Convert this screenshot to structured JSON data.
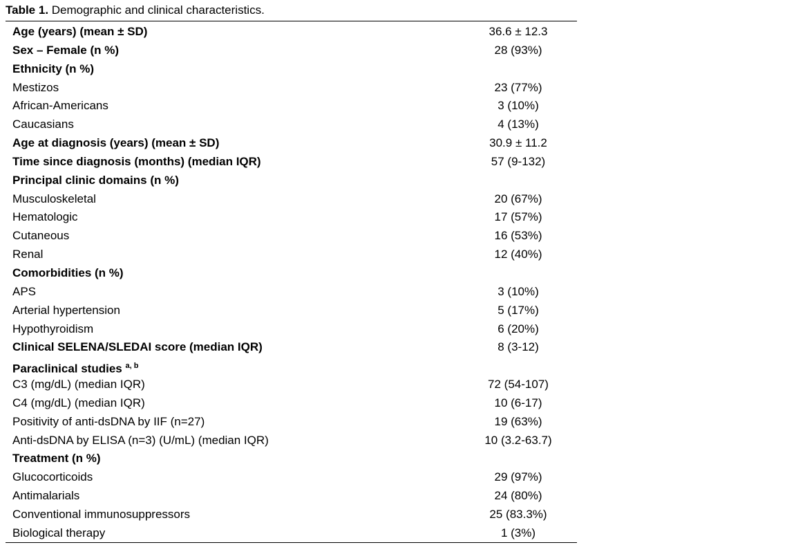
{
  "title": {
    "label": "Table 1.",
    "text": "Demographic and clinical characteristics."
  },
  "rows": [
    {
      "label": "Age (years) (mean ± SD)",
      "value": "36.6 ± 12.3",
      "bold": true
    },
    {
      "label": "Sex – Female (n %)",
      "value": "28 (93%)",
      "bold": true
    },
    {
      "label": "Ethnicity (n %)",
      "value": "",
      "bold": true
    },
    {
      "label": "Mestizos",
      "value": "23 (77%)"
    },
    {
      "label": "African-Americans",
      "value": "3 (10%)"
    },
    {
      "label": "Caucasians",
      "value": "4 (13%)"
    },
    {
      "label": "Age at diagnosis (years) (mean ± SD)",
      "value": "30.9 ± 11.2",
      "bold": true
    },
    {
      "label": "Time since diagnosis (months) (median IQR)",
      "value": "57 (9-132)",
      "bold": true
    },
    {
      "label": "Principal clinic domains (n %)",
      "value": "",
      "bold": true
    },
    {
      "label": "Musculoskeletal",
      "value": "20 (67%)"
    },
    {
      "label": "Hematologic",
      "value": "17 (57%)"
    },
    {
      "label": "Cutaneous",
      "value": "16 (53%)"
    },
    {
      "label": "Renal",
      "value": "12 (40%)"
    },
    {
      "label": "Comorbidities (n %)",
      "value": "",
      "bold": true
    },
    {
      "label": "APS",
      "value": "3 (10%)"
    },
    {
      "label": "Arterial hypertension",
      "value": "5 (17%)"
    },
    {
      "label": "Hypothyroidism",
      "value": "6 (20%)"
    },
    {
      "label": "Clinical SELENA/SLEDAI score (median IQR)",
      "value": "8 (3-12)",
      "bold": true
    },
    {
      "label": "Paraclinical studies",
      "sup": "a, b",
      "value": "",
      "bold": true
    },
    {
      "label": "C3 (mg/dL) (median IQR)",
      "value": "72 (54-107)"
    },
    {
      "label": "C4 (mg/dL) (median IQR)",
      "value": "10 (6-17)"
    },
    {
      "label": "Positivity of anti-dsDNA by IIF (n=27)",
      "value": "19 (63%)"
    },
    {
      "label": "Anti-dsDNA by ELISA (n=3) (U/mL) (median IQR)",
      "value": "10 (3.2-63.7)"
    },
    {
      "label": "Treatment (n %)",
      "value": "",
      "bold": true
    },
    {
      "label": "Glucocorticoids",
      "value": "29 (97%)"
    },
    {
      "label": "Antimalarials",
      "value": "24 (80%)"
    },
    {
      "label": "Conventional immunosuppressors",
      "value": "25 (83.3%)"
    },
    {
      "label": "Biological therapy",
      "value": "1 (3%)"
    }
  ]
}
